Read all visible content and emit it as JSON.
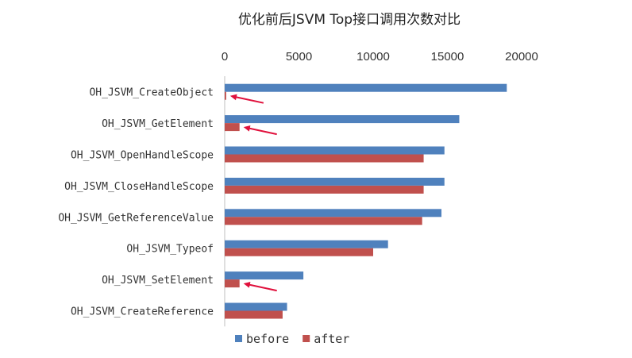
{
  "chart_data": {
    "type": "bar",
    "orientation": "horizontal",
    "title": "优化前后JSVM Top接口调用次数对比",
    "xlabel": "",
    "ylabel": "",
    "xlim": [
      0,
      20000
    ],
    "ticks": [
      0,
      5000,
      10000,
      15000,
      20000
    ],
    "tick_labels": [
      "0",
      "5000",
      "10000",
      "15000",
      "20000"
    ],
    "x_axis_position": "top",
    "grid": false,
    "legend_position": "bottom",
    "categories": [
      "OH_JSVM_CreateObject",
      "OH_JSVM_GetElement",
      "OH_JSVM_OpenHandleScope",
      "OH_JSVM_CloseHandleScope",
      "OH_JSVM_GetReferenceValue",
      "OH_JSVM_Typeof",
      "OH_JSVM_SetElement",
      "OH_JSVM_CreateReference"
    ],
    "series": [
      {
        "name": "before",
        "color": "#4F81BD",
        "values": [
          19000,
          15800,
          14800,
          14800,
          14600,
          11000,
          5300,
          4200
        ]
      },
      {
        "name": "after",
        "color": "#C0504D",
        "values": [
          100,
          1000,
          13400,
          13400,
          13300,
          10000,
          1000,
          3900
        ]
      }
    ],
    "annotations": [
      {
        "type": "arrow",
        "target_category": "OH_JSVM_CreateObject",
        "target_series": "after",
        "color": "#E0103C"
      },
      {
        "type": "arrow",
        "target_category": "OH_JSVM_GetElement",
        "target_series": "after",
        "color": "#E0103C"
      },
      {
        "type": "arrow",
        "target_category": "OH_JSVM_SetElement",
        "target_series": "after",
        "color": "#E0103C"
      }
    ]
  }
}
